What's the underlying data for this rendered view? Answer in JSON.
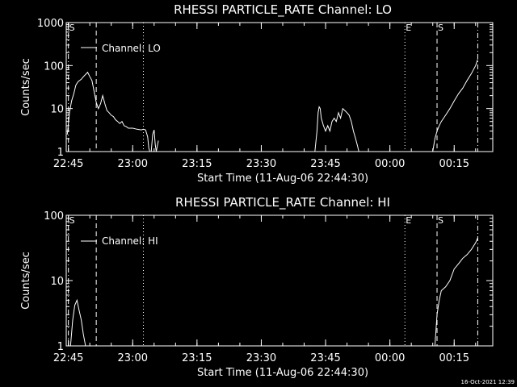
{
  "style": {
    "background": "#000000",
    "foreground": "#ffffff"
  },
  "timestamp": "16-Oct-2021 12:39",
  "chart_data": [
    {
      "type": "line",
      "title": "RHESSI PARTICLE_RATE Channel: LO",
      "xlabel": "Start Time (11-Aug-06 22:44:30)",
      "ylabel": "Counts/sec",
      "y_scale": "log",
      "ylim": [
        1,
        1000
      ],
      "y_ticks": [
        1,
        10,
        100,
        1000
      ],
      "y_tick_labels": [
        "1",
        "10",
        "100",
        "1000"
      ],
      "xlim": [
        "22:44:30",
        "00:24:00"
      ],
      "x_ticks": [
        "22:45",
        "23:00",
        "23:15",
        "23:30",
        "23:45",
        "00:00",
        "00:15"
      ],
      "legend": {
        "entries": [
          "Channel: LO"
        ],
        "position": "top-left"
      },
      "markers": [
        {
          "time": "22:45:00",
          "style": "dashdot",
          "label": "S"
        },
        {
          "time": "22:51:30",
          "style": "dashed",
          "label": ""
        },
        {
          "time": "23:02:30",
          "style": "dotted",
          "label": ""
        },
        {
          "time": "00:03:30",
          "style": "dotted",
          "label": "E"
        },
        {
          "time": "00:11:00",
          "style": "dashed",
          "label": "S"
        },
        {
          "time": "00:20:30",
          "style": "dashdot",
          "label": ""
        }
      ],
      "series": [
        {
          "name": "Channel: LO",
          "segments": [
            {
              "x": [
                "22:44:45",
                "22:45:15",
                "22:45:45",
                "22:46:15",
                "22:46:45",
                "22:47:15",
                "22:48:00",
                "22:48:30",
                "22:49:00",
                "22:49:30",
                "22:50:00",
                "22:50:30",
                "22:51:00",
                "22:51:30",
                "22:52:00",
                "22:52:30",
                "22:53:00",
                "22:53:30",
                "22:54:00",
                "22:54:30",
                "22:55:00",
                "22:55:30",
                "22:56:00",
                "22:56:30",
                "22:57:00",
                "22:57:30",
                "22:58:00",
                "22:58:30",
                "22:59:00",
                "23:00:00",
                "23:01:00",
                "23:02:00",
                "23:02:30",
                "23:03:00",
                "23:03:30",
                "23:03:45",
                "23:04:00",
                "23:04:20",
                "23:04:40",
                "23:05:00",
                "23:05:15",
                "23:05:30",
                "23:06:00"
              ],
              "y": [
                2.5,
                8,
                15,
                22,
                35,
                42,
                48,
                55,
                62,
                70,
                55,
                45,
                25,
                14,
                10,
                13,
                20,
                13,
                9,
                8,
                7,
                6.5,
                5.5,
                5,
                4.5,
                5,
                4,
                3.8,
                3.5,
                3.5,
                3.3,
                3.2,
                3.3,
                3.2,
                2.2,
                1.2,
                1.0,
                1.0,
                2.5,
                3.2,
                1.5,
                1.0,
                1.8
              ]
            },
            {
              "x": [
                "23:42:30",
                "23:43:00",
                "23:43:15",
                "23:43:30",
                "23:43:45",
                "23:44:00",
                "23:44:30",
                "23:45:00",
                "23:45:30",
                "23:46:00",
                "23:46:30",
                "23:47:00",
                "23:47:30",
                "23:48:00",
                "23:48:30",
                "23:49:00",
                "23:49:30",
                "23:50:00",
                "23:50:30",
                "23:51:00",
                "23:51:30",
                "23:52:00",
                "23:52:30",
                "23:52:45"
              ],
              "y": [
                1.0,
                3,
                8,
                11,
                10,
                6,
                4,
                3,
                4,
                3,
                5,
                6,
                5,
                8,
                6,
                10,
                9,
                8,
                7,
                5,
                3,
                2,
                1.3,
                1.0
              ]
            },
            {
              "x": [
                "00:10:00",
                "00:10:30",
                "00:11:00",
                "00:11:30",
                "00:12:00",
                "00:13:00",
                "00:14:00",
                "00:15:00",
                "00:16:00",
                "00:17:00",
                "00:18:00",
                "00:19:00",
                "00:20:00",
                "00:20:30"
              ],
              "y": [
                1.0,
                2,
                3,
                4,
                5,
                7,
                10,
                15,
                22,
                30,
                45,
                65,
                100,
                140
              ]
            }
          ]
        }
      ]
    },
    {
      "type": "line",
      "title": "RHESSI PARTICLE_RATE Channel: HI",
      "xlabel": "Start Time (11-Aug-06 22:44:30)",
      "ylabel": "Counts/sec",
      "y_scale": "log",
      "ylim": [
        1,
        100
      ],
      "y_ticks": [
        1,
        10,
        100
      ],
      "y_tick_labels": [
        "1",
        "10",
        "100"
      ],
      "xlim": [
        "22:44:30",
        "00:24:00"
      ],
      "x_ticks": [
        "22:45",
        "23:00",
        "23:15",
        "23:30",
        "23:45",
        "00:00",
        "00:15"
      ],
      "legend": {
        "entries": [
          "Channel: HI"
        ],
        "position": "top-left"
      },
      "markers": [
        {
          "time": "22:45:00",
          "style": "dashdot",
          "label": "S"
        },
        {
          "time": "22:51:30",
          "style": "dashed",
          "label": ""
        },
        {
          "time": "23:02:30",
          "style": "dotted",
          "label": ""
        },
        {
          "time": "00:03:30",
          "style": "dotted",
          "label": "E"
        },
        {
          "time": "00:11:00",
          "style": "dashed",
          "label": "S"
        },
        {
          "time": "00:20:30",
          "style": "dashdot",
          "label": ""
        }
      ],
      "series": [
        {
          "name": "Channel: HI",
          "segments": [
            {
              "x": [
                "22:45:30",
                "22:46:00",
                "22:46:30",
                "22:47:00",
                "22:47:30",
                "22:48:00",
                "22:48:30",
                "22:49:00"
              ],
              "y": [
                1.0,
                2.5,
                4.2,
                5.0,
                3.5,
                2.5,
                1.5,
                1.0
              ]
            },
            {
              "x": [
                "00:10:30",
                "00:11:00",
                "00:11:30",
                "00:12:00",
                "00:13:00",
                "00:14:00",
                "00:15:00",
                "00:16:00",
                "00:17:00",
                "00:18:00",
                "00:19:00",
                "00:20:00",
                "00:20:30"
              ],
              "y": [
                1.0,
                3,
                5,
                7,
                8,
                10,
                15,
                18,
                22,
                25,
                30,
                38,
                45
              ]
            }
          ]
        }
      ]
    }
  ]
}
